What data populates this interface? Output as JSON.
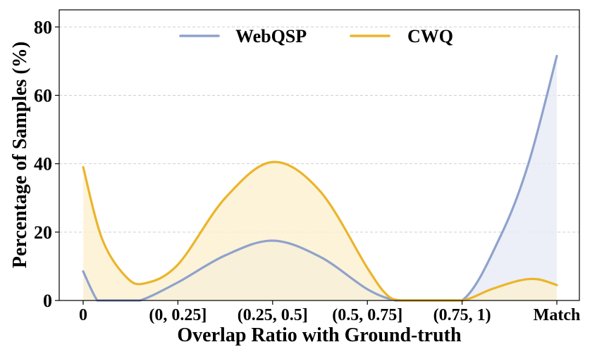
{
  "chart_data": {
    "type": "area",
    "title": "",
    "xlabel": "Overlap Ratio with Ground-truth",
    "ylabel": "Percentage of Samples (%)",
    "categories": [
      "0",
      "(0, 0.25]",
      "(0.25, 0.5]",
      "(0.5, 0.75]",
      "(0.75, 1)",
      "Match"
    ],
    "ylim": [
      0,
      85
    ],
    "yticks": [
      0,
      20,
      40,
      60,
      80
    ],
    "grid": "horizontal dashed",
    "legend_position": "top-center",
    "smoothed": true,
    "series": [
      {
        "name": "WebQSP",
        "color": "#8fa2cc",
        "fill": "#e7ebf6",
        "points": [
          {
            "x": 0,
            "y": 8.5
          },
          {
            "x": 0.15,
            "y": 0
          },
          {
            "x": 0.25,
            "y": 0
          },
          {
            "x": 0.4,
            "y": 0
          },
          {
            "x": 0.6,
            "y": 0
          },
          {
            "x": 1.0,
            "y": 5.3
          },
          {
            "x": 1.5,
            "y": 13.2
          },
          {
            "x": 2.0,
            "y": 17.5
          },
          {
            "x": 2.5,
            "y": 12.8
          },
          {
            "x": 3.0,
            "y": 3.3
          },
          {
            "x": 3.3,
            "y": 0
          },
          {
            "x": 3.5,
            "y": 0
          },
          {
            "x": 4.0,
            "y": 0
          },
          {
            "x": 4.4,
            "y": 18.5
          },
          {
            "x": 4.7,
            "y": 40.0
          },
          {
            "x": 5.0,
            "y": 71.5
          }
        ]
      },
      {
        "name": "CWQ",
        "color": "#ebb52b",
        "fill": "#fbf0cf",
        "points": [
          {
            "x": 0,
            "y": 39.0
          },
          {
            "x": 0.2,
            "y": 18.0
          },
          {
            "x": 0.45,
            "y": 7.0
          },
          {
            "x": 0.65,
            "y": 5.0
          },
          {
            "x": 1.0,
            "y": 10.5
          },
          {
            "x": 1.5,
            "y": 30.0
          },
          {
            "x": 2.0,
            "y": 40.5
          },
          {
            "x": 2.5,
            "y": 32.0
          },
          {
            "x": 3.0,
            "y": 9.5
          },
          {
            "x": 3.2,
            "y": 1.8
          },
          {
            "x": 3.35,
            "y": 0
          },
          {
            "x": 3.6,
            "y": 0
          },
          {
            "x": 4.0,
            "y": 0
          },
          {
            "x": 4.3,
            "y": 3.2
          },
          {
            "x": 4.6,
            "y": 5.8
          },
          {
            "x": 4.8,
            "y": 6.2
          },
          {
            "x": 5.0,
            "y": 4.5
          }
        ]
      }
    ]
  }
}
